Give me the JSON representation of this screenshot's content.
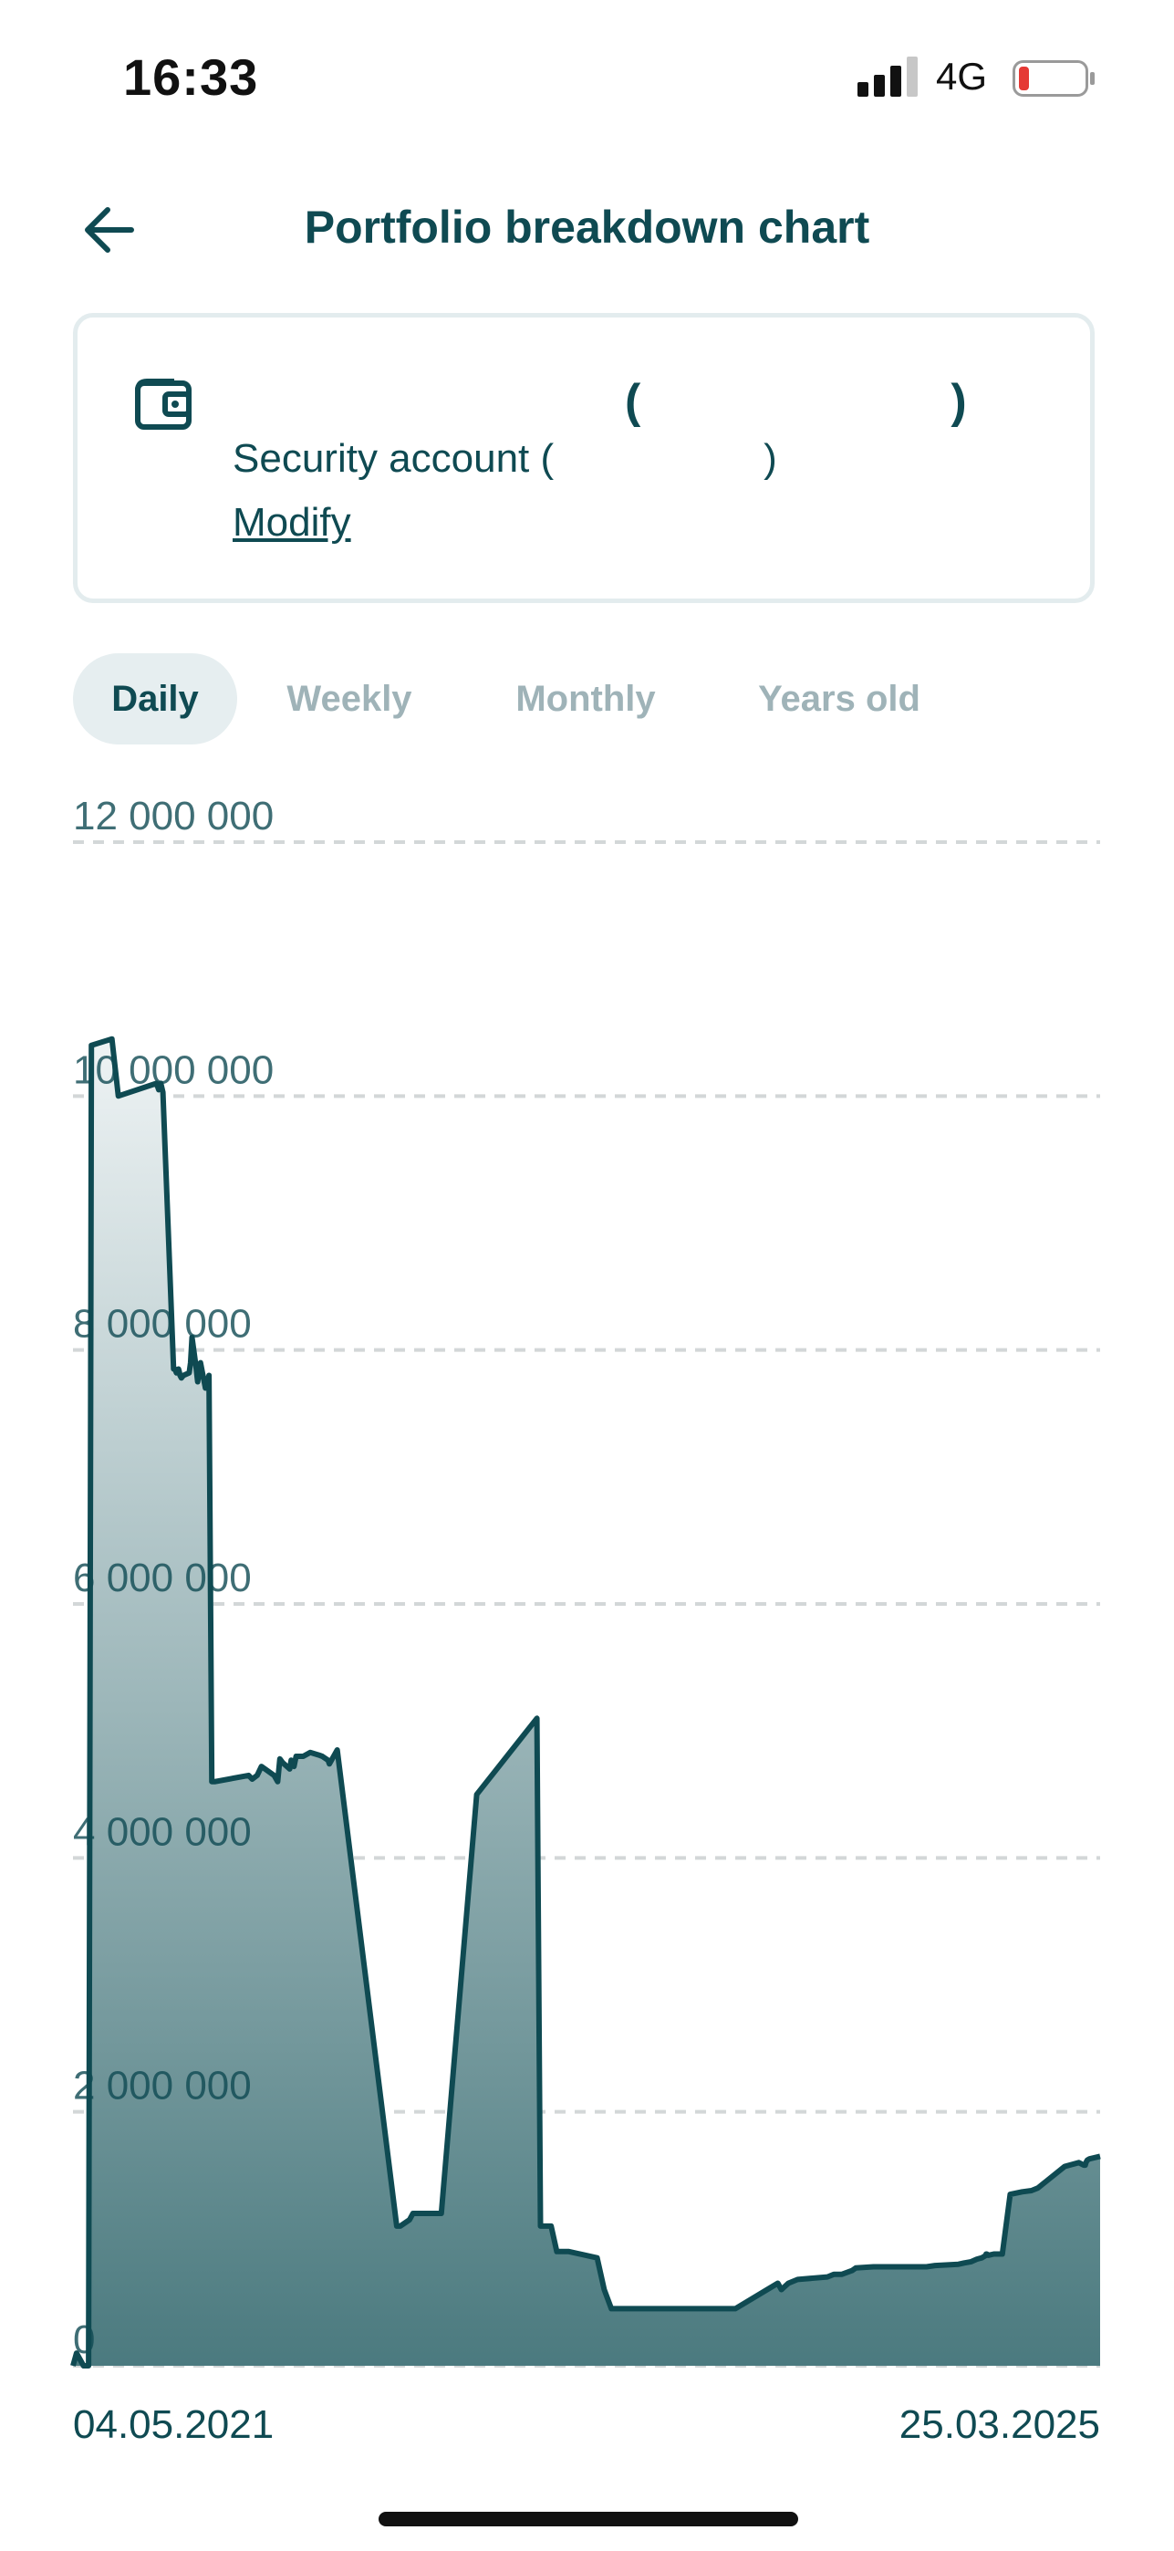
{
  "status_bar": {
    "time": "16:33",
    "network": "4G",
    "battery_color": "#e53935"
  },
  "header": {
    "title": "Portfolio breakdown chart",
    "back_icon": "arrow-left-icon"
  },
  "account": {
    "icon": "wallet-icon",
    "name_open": "(",
    "name_close": ")",
    "type_label": "Security account (",
    "type_close": ")",
    "modify_label": "Modify"
  },
  "tabs": [
    {
      "label": "Daily",
      "active": true
    },
    {
      "label": "Weekly",
      "active": false
    },
    {
      "label": "Monthly",
      "active": false
    },
    {
      "label": "Years old",
      "active": false
    }
  ],
  "colors": {
    "primary": "#0f4a52",
    "line": "#0f4a52",
    "fill_top": "#eef3f4",
    "fill_bottom": "#4b7a7f",
    "grid": "#d3d7d8",
    "inactive_tab": "#9fb3b8"
  },
  "chart_data": {
    "type": "area",
    "x_start_label": "04.05.2021",
    "x_end_label": "25.03.2025",
    "ylim": [
      0,
      12000000
    ],
    "y_ticks": [
      0,
      2000000,
      4000000,
      6000000,
      8000000,
      10000000,
      12000000
    ],
    "y_tick_labels": [
      "0",
      "2 000 000",
      "4 000 000",
      "6 000 000",
      "8 000 000",
      "10 000 000",
      "12 000 000"
    ],
    "grid": true,
    "x": [
      0,
      0.5,
      1.5,
      2.2,
      2.6,
      5.5,
      6.0,
      6.4,
      11.8,
      12.1,
      12.4,
      12.7,
      14.2,
      14.4,
      14.6,
      14.9,
      15.0,
      15.1,
      15.3,
      15.6,
      16.4,
      16.6,
      16.8,
      17.3,
      17.6,
      18.0,
      18.7,
      19.2,
      19.6,
      20.0,
      24.8,
      25.3,
      26.0,
      26.6,
      28.4,
      28.9,
      29.2,
      29.6,
      30.6,
      30.8,
      31.2,
      31.5,
      32.5,
      33.5,
      34.7,
      35.2,
      36.0,
      36.2,
      37.3,
      45.7,
      46.2,
      47.5,
      48.0,
      49.0,
      52.0,
      57.0,
      65.5,
      66.0,
      67.5,
      68.3,
      69.3,
      70.0,
      74.0,
      75.0,
      76.0,
      76.3,
      78.3,
      79.7,
      82.0,
      84.5,
      85.0,
      86.5,
      87.3,
      90.0,
      93.5,
      98.0,
      99.5,
      100.0,
      100.4,
      101.0,
      102.3,
      106.5,
      107.4,
      108.5,
      110.0,
      110.5,
      113.0,
      115.8,
      119.5,
      120.5,
      121.7,
      125.0,
      125.8,
      126.8,
      127.2,
      127.6,
      128.3,
      128.6,
      128.9,
      128.9,
      129.0,
      129.2,
      130.0,
      131.2,
      132.3,
      134.0,
      135.3,
      136.2,
      140.0,
      142.0,
      142.7,
      142.9,
      143.0,
      143.1,
      143.2,
      143.5,
      145.0
    ],
    "y": [
      0,
      100000,
      0,
      0,
      10400000,
      10450000,
      10200000,
      10000000,
      10100000,
      10050000,
      10100000,
      10030000,
      7850000,
      7850000,
      7820000,
      7850000,
      7830000,
      7800000,
      7780000,
      7800000,
      7820000,
      7900000,
      8100000,
      7900000,
      7750000,
      7900000,
      7700000,
      7800000,
      4600000,
      4600000,
      4650000,
      4620000,
      4650000,
      4720000,
      4650000,
      4600000,
      4780000,
      4750000,
      4700000,
      4770000,
      4720000,
      4800000,
      4800000,
      4830000,
      4810000,
      4800000,
      4770000,
      4740000,
      4850000,
      1100000,
      1100000,
      1150000,
      1200000,
      1200000,
      1200000,
      4500000,
      5100000,
      1100000,
      1100000,
      900000,
      900000,
      900000,
      850000,
      600000,
      450000,
      450000,
      450000,
      450000,
      450000,
      450000,
      450000,
      450000,
      450000,
      450000,
      450000,
      600000,
      650000,
      600000,
      620000,
      650000,
      680000,
      700000,
      720000,
      720000,
      750000,
      770000,
      780000,
      780000,
      780000,
      780000,
      790000,
      800000,
      810000,
      820000,
      830000,
      840000,
      850000,
      860000,
      870000,
      880000,
      880000,
      870000,
      880000,
      880000,
      1350000,
      1370000,
      1380000,
      1400000,
      1570000,
      1600000,
      1580000,
      1580000,
      1600000,
      1610000,
      1620000,
      1630000,
      1650000
    ]
  }
}
